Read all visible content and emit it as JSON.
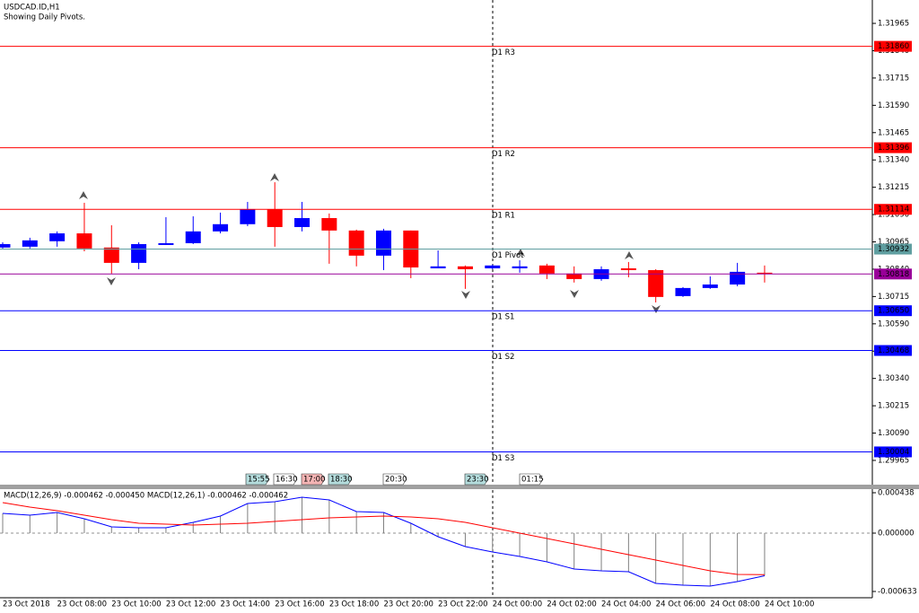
{
  "chart_data": [
    {
      "type": "candlestick",
      "title": "USDCAD.ID,H1",
      "subtitle": "Showing Daily Pivots.",
      "categories": [
        "23 Oct 2018",
        null,
        "23 Oct 08:00",
        null,
        "23 Oct 10:00",
        null,
        "23 Oct 12:00",
        null,
        "23 Oct 14:00",
        null,
        "23 Oct 16:00",
        null,
        "23 Oct 18:00",
        null,
        "23 Oct 20:00",
        null,
        "23 Oct 22:00",
        null,
        "24 Oct 00:00",
        null,
        "24 Oct 02:00",
        null,
        "24 Oct 04:00",
        null,
        "24 Oct 06:00",
        null,
        "24 Oct 08:00",
        null,
        "24 Oct 10:00"
      ],
      "open": [
        1.30939,
        1.30943,
        1.30968,
        1.31004,
        1.30939,
        1.30869,
        1.30951,
        1.30959,
        1.31013,
        1.31046,
        1.31115,
        1.31033,
        1.31074,
        1.31017,
        1.30902,
        1.31017,
        1.30844,
        1.30853,
        1.30844,
        1.30844,
        1.30857,
        1.3082,
        1.30795,
        1.30844,
        1.30836,
        1.30717,
        1.30754,
        1.3077,
        1.30824
      ],
      "high": [
        1.30963,
        1.30984,
        1.31013,
        1.31144,
        1.31041,
        1.30963,
        1.31078,
        1.31082,
        1.31099,
        1.31148,
        1.31238,
        1.31148,
        1.31095,
        1.31021,
        1.31025,
        1.31017,
        1.30926,
        1.30857,
        1.30861,
        1.30881,
        1.30865,
        1.30853,
        1.30853,
        1.30873,
        1.3084,
        1.30758,
        1.30807,
        1.30869,
        1.30857
      ],
      "low": [
        1.30935,
        1.30935,
        1.30943,
        1.30922,
        1.3082,
        1.3084,
        1.30951,
        1.30955,
        1.31004,
        1.31037,
        1.30943,
        1.31013,
        1.30865,
        1.30853,
        1.30836,
        1.30799,
        1.30844,
        1.3075,
        1.3084,
        1.30824,
        1.30795,
        1.30779,
        1.30787,
        1.30803,
        1.30688,
        1.30713,
        1.3075,
        1.30762,
        1.30779
      ],
      "close": [
        1.30955,
        1.30972,
        1.31004,
        1.30935,
        1.30869,
        1.30955,
        1.30959,
        1.31013,
        1.31046,
        1.31115,
        1.31033,
        1.31074,
        1.31017,
        1.30902,
        1.31017,
        1.30848,
        1.30853,
        1.3084,
        1.30857,
        1.30853,
        1.3082,
        1.30795,
        1.3084,
        1.30836,
        1.30713,
        1.30754,
        1.3077,
        1.30828,
        1.30818
      ],
      "up_color": "#0000ff",
      "down_color": "#ff0000",
      "ylim": [
        1.29854,
        1.32072
      ],
      "yticks": [
        1.31965,
        {
          "value": 1.3184,
          "label": "1.31840"
        },
        1.31715,
        {
          "value": 1.3159,
          "label": "1.31590"
        },
        1.31465,
        {
          "value": 1.3134,
          "label": "1.31340"
        },
        1.31215,
        {
          "value": 1.3109,
          "label": "1.31090"
        },
        1.30965,
        {
          "value": 1.3084,
          "label": "1.30840"
        },
        1.30715,
        {
          "value": 1.3059,
          "label": "1.30590"
        },
        1.30465,
        {
          "value": 1.3034,
          "label": "1.30340"
        },
        1.30215,
        {
          "value": 1.3009,
          "label": "1.30090"
        },
        1.29965
      ],
      "pivots": [
        {
          "name": "D1 R3",
          "value": 1.3186,
          "label": "1.31860",
          "color": "#ff0000"
        },
        {
          "name": "D1 R2",
          "value": 1.31396,
          "label": "1.31396",
          "color": "#ff0000"
        },
        {
          "name": "D1 R1",
          "value": 1.31114,
          "label": "1.31114",
          "color": "#ff0000"
        },
        {
          "name": "D1 Pivot",
          "value": 1.30932,
          "label": "1.30932",
          "color": "#5f9ea0"
        },
        {
          "name": "D1 S1",
          "value": 1.3065,
          "label": "1.30650",
          "color": "#0000ff"
        },
        {
          "name": "D1 S2",
          "value": 1.30468,
          "label": "1.30468",
          "color": "#0000ff"
        },
        {
          "name": "D1 S3",
          "value": 1.30004,
          "label": "1.30004",
          "color": "#0000ff"
        }
      ],
      "last_price": {
        "value": 1.30818,
        "label": "1.30818",
        "color": "#990099"
      },
      "time_markers": [
        {
          "label": "15:55",
          "color": "#b4dcdc"
        },
        {
          "label": "16:30",
          "color": "#ffffff"
        },
        {
          "label": "17:00",
          "color": "#f4b4b4"
        },
        {
          "label": "18:30",
          "color": "#b4dcdc"
        },
        {
          "label": "20:30",
          "color": "#ffffff"
        },
        {
          "label": "23:30",
          "color": "#b4dcdc"
        },
        {
          "label": "01:15",
          "color": "#ffffff"
        }
      ]
    },
    {
      "type": "macd",
      "title": "MACD(12,26,9) -0.000462 -0.000450 MACD(12,26,1) -0.000462 -0.000462",
      "ylim": [
        -0.000701,
        0.000477
      ],
      "yticks": [
        0.000438,
        {
          "value": 0,
          "label": "0.000000"
        },
        -0.000633
      ],
      "histogram_color": "#808080",
      "series": [
        {
          "color": "#0000ff",
          "values": [
            0.000214,
            0.000195,
            0.000224,
            0.000156,
            6.8e-05,
            5.8e-05,
            5.8e-05,
            0.000117,
            0.000185,
            0.000321,
            0.000341,
            0.000389,
            0.00036,
            0.000234,
            0.000224,
            0.000107,
            -3.9e-05,
            -0.000146,
            -0.000204,
            -0.000253,
            -0.000312,
            -0.000389,
            -0.000409,
            -0.000419,
            -0.000545,
            -0.000565,
            -0.000574,
            -0.000526,
            -0.000462
          ]
        },
        {
          "color": "#ff0000",
          "values": [
            0.000331,
            0.000282,
            0.000243,
            0.000195,
            0.000146,
            0.000107,
            9.7e-05,
            8.8e-05,
            9.7e-05,
            0.000107,
            0.000127,
            0.000146,
            0.000166,
            0.000175,
            0.000185,
            0.000175,
            0.000156,
            0.000117,
            5.8e-05,
            0,
            -5.8e-05,
            -0.000117,
            -0.000175,
            -0.000234,
            -0.000292,
            -0.000351,
            -0.000409,
            -0.000448,
            -0.00045
          ]
        }
      ]
    }
  ]
}
